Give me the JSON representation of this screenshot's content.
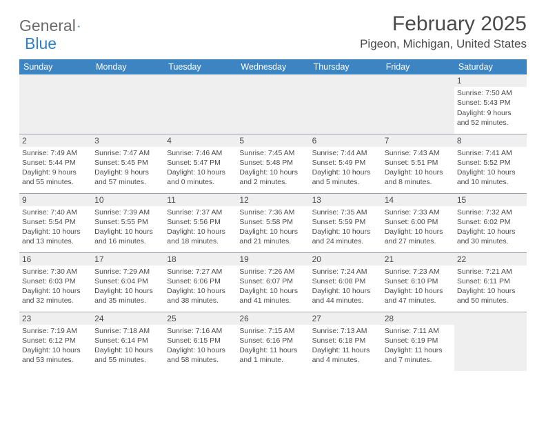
{
  "brand": {
    "general": "General",
    "blue": "Blue"
  },
  "title": "February 2025",
  "location": "Pigeon, Michigan, United States",
  "colors": {
    "header_bg": "#3d84c3",
    "header_text": "#ffffff",
    "alt_bg": "#efefef",
    "rule": "#9aa0a6",
    "text": "#4a4a4a",
    "brand_blue": "#2f7fc2"
  },
  "days_of_week": [
    "Sunday",
    "Monday",
    "Tuesday",
    "Wednesday",
    "Thursday",
    "Friday",
    "Saturday"
  ],
  "weeks": [
    [
      null,
      null,
      null,
      null,
      null,
      null,
      {
        "n": "1",
        "sr": "Sunrise: 7:50 AM",
        "ss": "Sunset: 5:43 PM",
        "dl": "Daylight: 9 hours and 52 minutes."
      }
    ],
    [
      {
        "n": "2",
        "sr": "Sunrise: 7:49 AM",
        "ss": "Sunset: 5:44 PM",
        "dl": "Daylight: 9 hours and 55 minutes."
      },
      {
        "n": "3",
        "sr": "Sunrise: 7:47 AM",
        "ss": "Sunset: 5:45 PM",
        "dl": "Daylight: 9 hours and 57 minutes."
      },
      {
        "n": "4",
        "sr": "Sunrise: 7:46 AM",
        "ss": "Sunset: 5:47 PM",
        "dl": "Daylight: 10 hours and 0 minutes."
      },
      {
        "n": "5",
        "sr": "Sunrise: 7:45 AM",
        "ss": "Sunset: 5:48 PM",
        "dl": "Daylight: 10 hours and 2 minutes."
      },
      {
        "n": "6",
        "sr": "Sunrise: 7:44 AM",
        "ss": "Sunset: 5:49 PM",
        "dl": "Daylight: 10 hours and 5 minutes."
      },
      {
        "n": "7",
        "sr": "Sunrise: 7:43 AM",
        "ss": "Sunset: 5:51 PM",
        "dl": "Daylight: 10 hours and 8 minutes."
      },
      {
        "n": "8",
        "sr": "Sunrise: 7:41 AM",
        "ss": "Sunset: 5:52 PM",
        "dl": "Daylight: 10 hours and 10 minutes."
      }
    ],
    [
      {
        "n": "9",
        "sr": "Sunrise: 7:40 AM",
        "ss": "Sunset: 5:54 PM",
        "dl": "Daylight: 10 hours and 13 minutes."
      },
      {
        "n": "10",
        "sr": "Sunrise: 7:39 AM",
        "ss": "Sunset: 5:55 PM",
        "dl": "Daylight: 10 hours and 16 minutes."
      },
      {
        "n": "11",
        "sr": "Sunrise: 7:37 AM",
        "ss": "Sunset: 5:56 PM",
        "dl": "Daylight: 10 hours and 18 minutes."
      },
      {
        "n": "12",
        "sr": "Sunrise: 7:36 AM",
        "ss": "Sunset: 5:58 PM",
        "dl": "Daylight: 10 hours and 21 minutes."
      },
      {
        "n": "13",
        "sr": "Sunrise: 7:35 AM",
        "ss": "Sunset: 5:59 PM",
        "dl": "Daylight: 10 hours and 24 minutes."
      },
      {
        "n": "14",
        "sr": "Sunrise: 7:33 AM",
        "ss": "Sunset: 6:00 PM",
        "dl": "Daylight: 10 hours and 27 minutes."
      },
      {
        "n": "15",
        "sr": "Sunrise: 7:32 AM",
        "ss": "Sunset: 6:02 PM",
        "dl": "Daylight: 10 hours and 30 minutes."
      }
    ],
    [
      {
        "n": "16",
        "sr": "Sunrise: 7:30 AM",
        "ss": "Sunset: 6:03 PM",
        "dl": "Daylight: 10 hours and 32 minutes."
      },
      {
        "n": "17",
        "sr": "Sunrise: 7:29 AM",
        "ss": "Sunset: 6:04 PM",
        "dl": "Daylight: 10 hours and 35 minutes."
      },
      {
        "n": "18",
        "sr": "Sunrise: 7:27 AM",
        "ss": "Sunset: 6:06 PM",
        "dl": "Daylight: 10 hours and 38 minutes."
      },
      {
        "n": "19",
        "sr": "Sunrise: 7:26 AM",
        "ss": "Sunset: 6:07 PM",
        "dl": "Daylight: 10 hours and 41 minutes."
      },
      {
        "n": "20",
        "sr": "Sunrise: 7:24 AM",
        "ss": "Sunset: 6:08 PM",
        "dl": "Daylight: 10 hours and 44 minutes."
      },
      {
        "n": "21",
        "sr": "Sunrise: 7:23 AM",
        "ss": "Sunset: 6:10 PM",
        "dl": "Daylight: 10 hours and 47 minutes."
      },
      {
        "n": "22",
        "sr": "Sunrise: 7:21 AM",
        "ss": "Sunset: 6:11 PM",
        "dl": "Daylight: 10 hours and 50 minutes."
      }
    ],
    [
      {
        "n": "23",
        "sr": "Sunrise: 7:19 AM",
        "ss": "Sunset: 6:12 PM",
        "dl": "Daylight: 10 hours and 53 minutes."
      },
      {
        "n": "24",
        "sr": "Sunrise: 7:18 AM",
        "ss": "Sunset: 6:14 PM",
        "dl": "Daylight: 10 hours and 55 minutes."
      },
      {
        "n": "25",
        "sr": "Sunrise: 7:16 AM",
        "ss": "Sunset: 6:15 PM",
        "dl": "Daylight: 10 hours and 58 minutes."
      },
      {
        "n": "26",
        "sr": "Sunrise: 7:15 AM",
        "ss": "Sunset: 6:16 PM",
        "dl": "Daylight: 11 hours and 1 minute."
      },
      {
        "n": "27",
        "sr": "Sunrise: 7:13 AM",
        "ss": "Sunset: 6:18 PM",
        "dl": "Daylight: 11 hours and 4 minutes."
      },
      {
        "n": "28",
        "sr": "Sunrise: 7:11 AM",
        "ss": "Sunset: 6:19 PM",
        "dl": "Daylight: 11 hours and 7 minutes."
      },
      null
    ]
  ]
}
